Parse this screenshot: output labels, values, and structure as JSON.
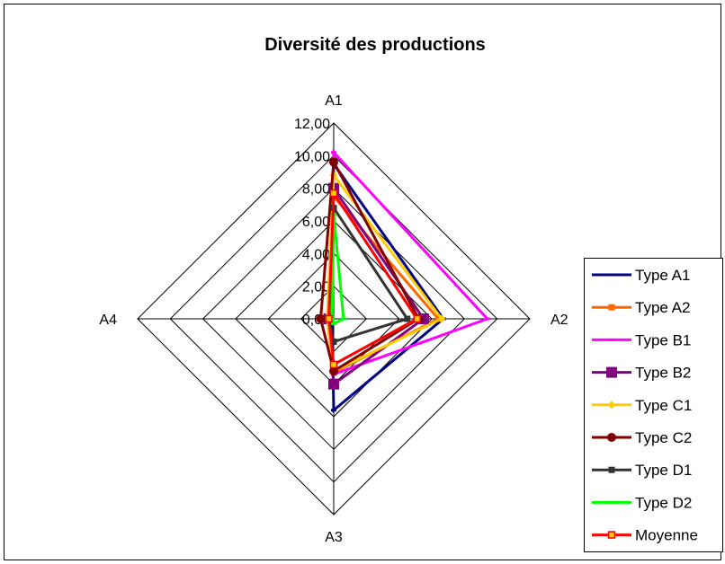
{
  "chart_data": {
    "type": "radar",
    "title": "Diversité des productions",
    "axes": [
      "A1",
      "A2",
      "A3",
      "A4"
    ],
    "rlim": [
      0,
      12
    ],
    "ticks": [
      "0,00",
      "2,00",
      "4,00",
      "6,00",
      "8,00",
      "10,00",
      "12,00"
    ],
    "tick_values": [
      0,
      2,
      4,
      6,
      8,
      10,
      12
    ],
    "grid": true,
    "legend_position": "right",
    "series": [
      {
        "name": "Type A1",
        "values": [
          9.5,
          6.7,
          5.6,
          0.1
        ],
        "color": "#000080",
        "marker": "dash"
      },
      {
        "name": "Type A2",
        "values": [
          7.5,
          6.4,
          3.3,
          0.4
        ],
        "color": "#FF6600",
        "marker": "square"
      },
      {
        "name": "Type B1",
        "values": [
          10.2,
          9.4,
          3.4,
          0.3
        ],
        "color": "#FF00FF",
        "marker": "dash"
      },
      {
        "name": "Type B2",
        "values": [
          8.0,
          5.5,
          4.0,
          0.3
        ],
        "color": "#800080",
        "marker": "bigsquare"
      },
      {
        "name": "Type C1",
        "values": [
          8.8,
          6.6,
          3.2,
          0.4
        ],
        "color": "#FFCC00",
        "marker": "diamond"
      },
      {
        "name": "Type C2",
        "values": [
          9.6,
          5.2,
          3.2,
          0.8
        ],
        "color": "#800000",
        "marker": "circle"
      },
      {
        "name": "Type D1",
        "values": [
          6.8,
          4.5,
          1.4,
          0.3
        ],
        "color": "#333333",
        "marker": "square"
      },
      {
        "name": "Type D2",
        "values": [
          6.4,
          0.6,
          0.3,
          0.1
        ],
        "color": "#00FF00",
        "marker": "dash"
      },
      {
        "name": "Moyenne",
        "values": [
          7.7,
          5.1,
          2.8,
          0.3
        ],
        "color": "#FF0000",
        "marker": "hollowsquare"
      }
    ]
  }
}
